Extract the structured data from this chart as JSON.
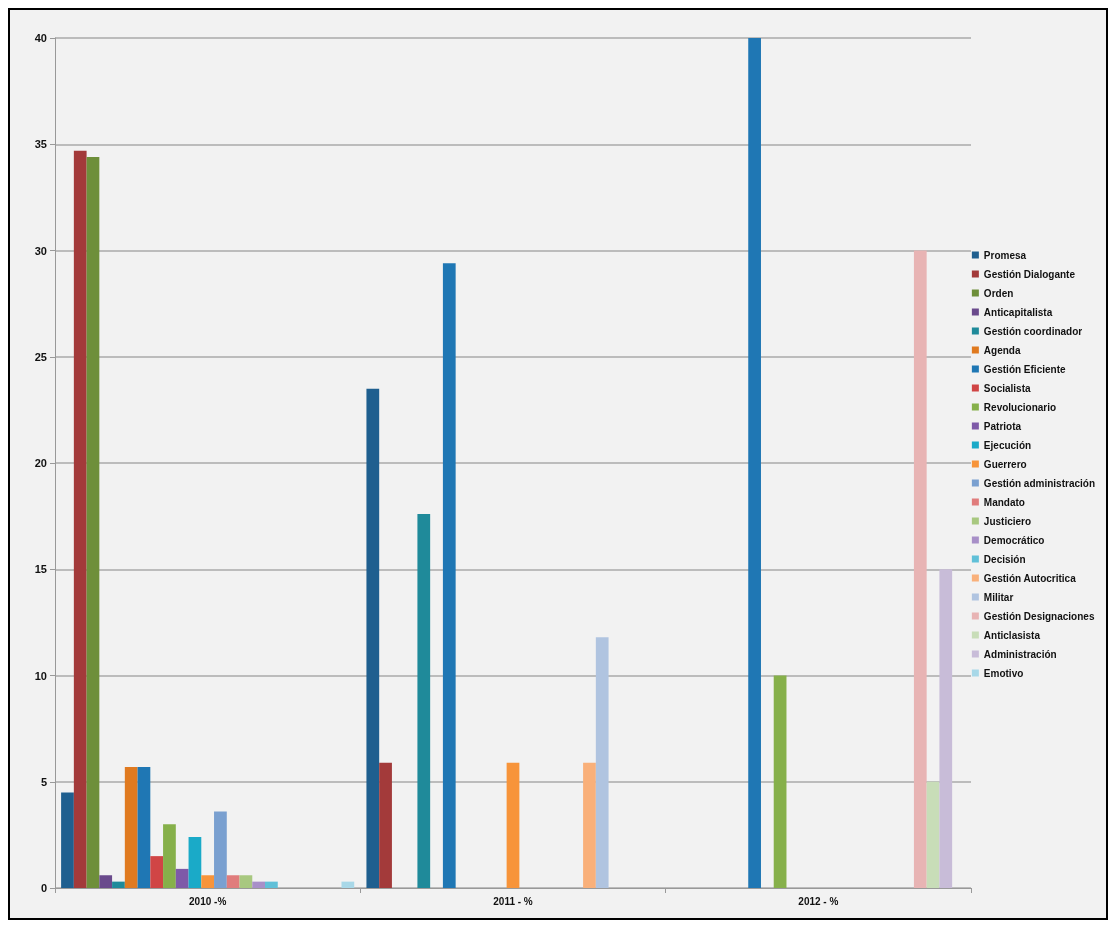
{
  "chart_data": {
    "type": "bar",
    "categories": [
      "2010 -%",
      "2011 - %",
      "2012 - %"
    ],
    "series": [
      {
        "name": "Promesa",
        "color": "#1f5f8f",
        "values": [
          4.5,
          23.5,
          0
        ]
      },
      {
        "name": "Gestión Dialogante",
        "color": "#a33a3a",
        "values": [
          34.7,
          5.9,
          0
        ]
      },
      {
        "name": "Orden",
        "color": "#6e8f3a",
        "values": [
          34.4,
          0,
          0
        ]
      },
      {
        "name": "Anticapitalista",
        "color": "#6a4a8c",
        "values": [
          0.6,
          0,
          0
        ]
      },
      {
        "name": "Gestión coordinador",
        "color": "#1f8a9a",
        "values": [
          0.3,
          17.6,
          0
        ]
      },
      {
        "name": "Agenda",
        "color": "#e07a20",
        "values": [
          5.7,
          0,
          0
        ]
      },
      {
        "name": "Gestión Eficiente",
        "color": "#1f77b4",
        "values": [
          5.7,
          29.4,
          40
        ]
      },
      {
        "name": "Socialista",
        "color": "#d04545",
        "values": [
          1.5,
          0,
          0
        ]
      },
      {
        "name": "Revolucionario",
        "color": "#86b04a",
        "values": [
          3.0,
          0,
          10
        ]
      },
      {
        "name": "Patriota",
        "color": "#7e5aa8",
        "values": [
          0.9,
          0,
          0
        ]
      },
      {
        "name": "Ejecución",
        "color": "#1aaac8",
        "values": [
          2.4,
          0,
          0
        ]
      },
      {
        "name": "Guerrero",
        "color": "#f7943a",
        "values": [
          0.6,
          5.9,
          0
        ]
      },
      {
        "name": "Gestión administración",
        "color": "#7aa0d0",
        "values": [
          3.6,
          0,
          0
        ]
      },
      {
        "name": "Mandato",
        "color": "#e07c7c",
        "values": [
          0.6,
          0,
          0
        ]
      },
      {
        "name": "Justiciero",
        "color": "#a8c880",
        "values": [
          0.6,
          0,
          0
        ]
      },
      {
        "name": "Democrático",
        "color": "#a890c8",
        "values": [
          0.3,
          0,
          0
        ]
      },
      {
        "name": "Decisión",
        "color": "#60c0d8",
        "values": [
          0.3,
          0,
          0
        ]
      },
      {
        "name": "Gestión Autocritica",
        "color": "#f9b07a",
        "values": [
          0,
          5.9,
          0
        ]
      },
      {
        "name": "Militar",
        "color": "#b0c4e0",
        "values": [
          0,
          11.8,
          0
        ]
      },
      {
        "name": "Gestión Designaciones",
        "color": "#e8b4b4",
        "values": [
          0,
          0,
          30
        ]
      },
      {
        "name": "Anticlasista",
        "color": "#c8ddb8",
        "values": [
          0,
          0,
          5
        ]
      },
      {
        "name": "Administración",
        "color": "#c8bcd8",
        "values": [
          0,
          0,
          15
        ]
      },
      {
        "name": "Emotivo",
        "color": "#a8d8e8",
        "values": [
          0.3,
          0,
          0
        ]
      }
    ],
    "ylim": [
      0,
      40
    ],
    "yticks": [
      0,
      5,
      10,
      15,
      20,
      25,
      30,
      35,
      40
    ],
    "grid": "y",
    "legend": "right"
  }
}
